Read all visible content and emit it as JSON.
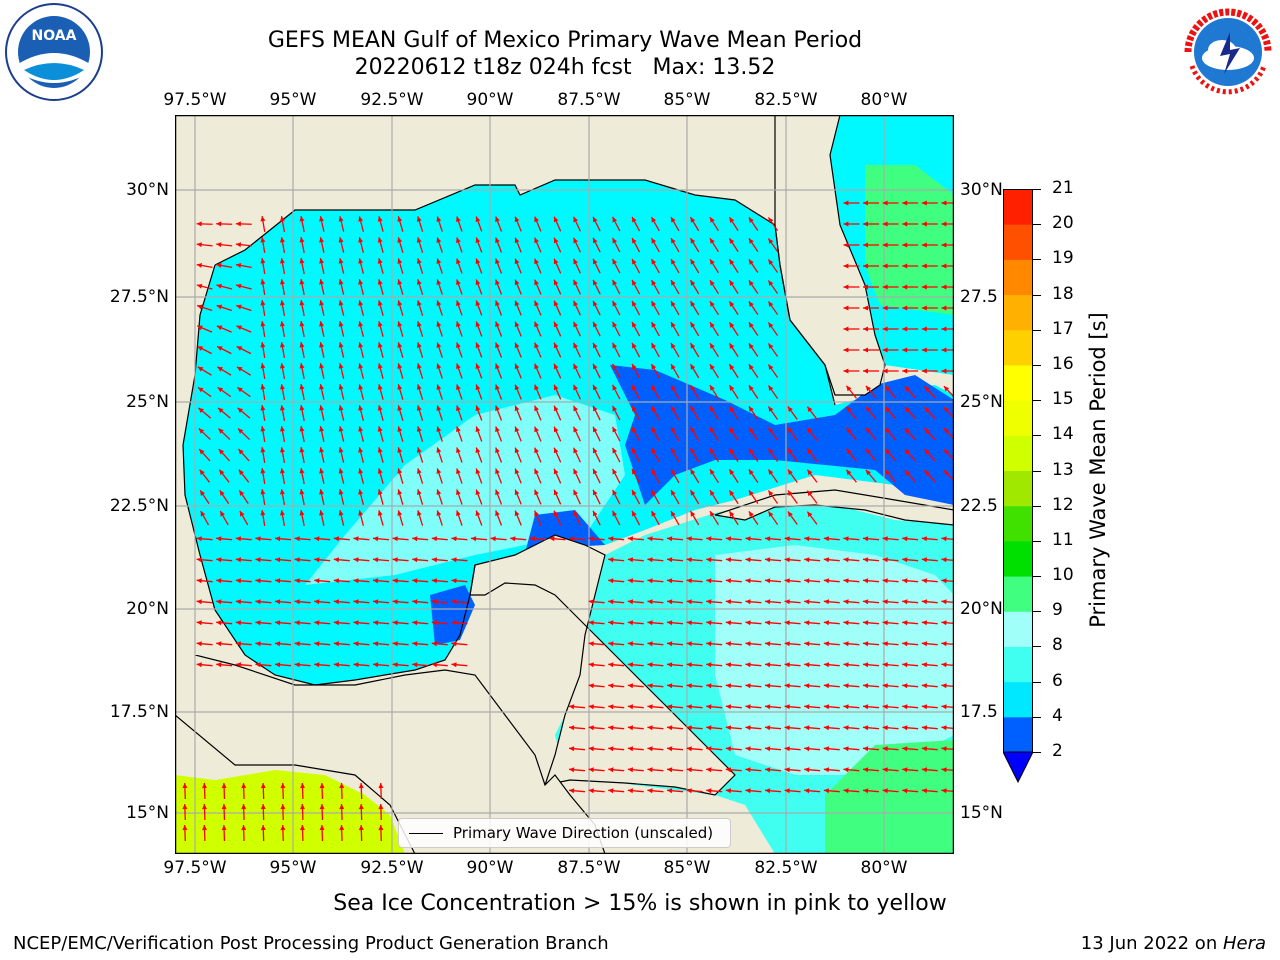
{
  "header": {
    "title_line1": "GEFS MEAN Gulf of Mexico Primary Wave Mean Period",
    "title_line2": "20220612 t18z 024h fcst   Max: 13.52"
  },
  "logos": {
    "left": "NOAA",
    "right": "NATIONAL WEATHER SERVICE",
    "left_ring_text": "NATIONAL OCEANIC AND ATMOSPHERIC ADMINISTRATION · U.S. DEPARTMENT OF COMMERCE"
  },
  "map": {
    "lon_labels": [
      "97.5°W",
      "95°W",
      "92.5°W",
      "90°W",
      "87.5°W",
      "85°W",
      "82.5°W",
      "80°W"
    ],
    "lat_labels_left": [
      "30°N",
      "27.5°N",
      "25°N",
      "22.5°N",
      "20°N",
      "17.5°N",
      "15°N"
    ],
    "lat_labels_right": [
      "30°N",
      "27.5",
      "25°N",
      "22.5",
      "20°N",
      "17.5",
      "15°N"
    ],
    "legend_label": "Primary Wave Direction (unscaled)"
  },
  "colorbar": {
    "label": "Primary Wave Mean Period [s]",
    "ticks": [
      "2",
      "4",
      "6",
      "8",
      "9",
      "10",
      "11",
      "12",
      "13",
      "14",
      "15",
      "16",
      "17",
      "18",
      "19",
      "20",
      "21"
    ],
    "colors": [
      "#0060ff",
      "#00e8ff",
      "#40fff0",
      "#a0fff8",
      "#40ff80",
      "#00e000",
      "#40e000",
      "#a0e800",
      "#d0ff00",
      "#f0ff00",
      "#ffff00",
      "#ffd000",
      "#ffb000",
      "#ff8800",
      "#ff5000",
      "#ff2000",
      "#ff0000"
    ],
    "under_color": "#0000ff"
  },
  "footer": {
    "note": "Sea Ice Concentration > 15% is shown in pink to yellow",
    "left": "NCEP/EMC/Verification Post Processing Product Generation Branch",
    "right_date": "13 Jun 2022 on ",
    "right_host": "Hera"
  }
}
